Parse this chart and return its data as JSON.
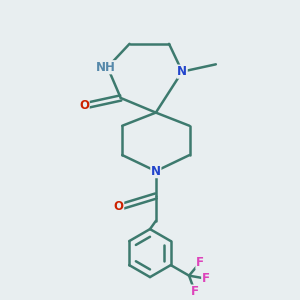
{
  "bg": "#e8eef0",
  "bc": "#3d7a6e",
  "Nc": "#2244cc",
  "Oc": "#cc2200",
  "Fc": "#dd44bb",
  "Hc": "#5588aa",
  "lw": 1.8,
  "fs": 8.5,
  "xlim": [
    0,
    10
  ],
  "ylim": [
    0,
    10
  ]
}
